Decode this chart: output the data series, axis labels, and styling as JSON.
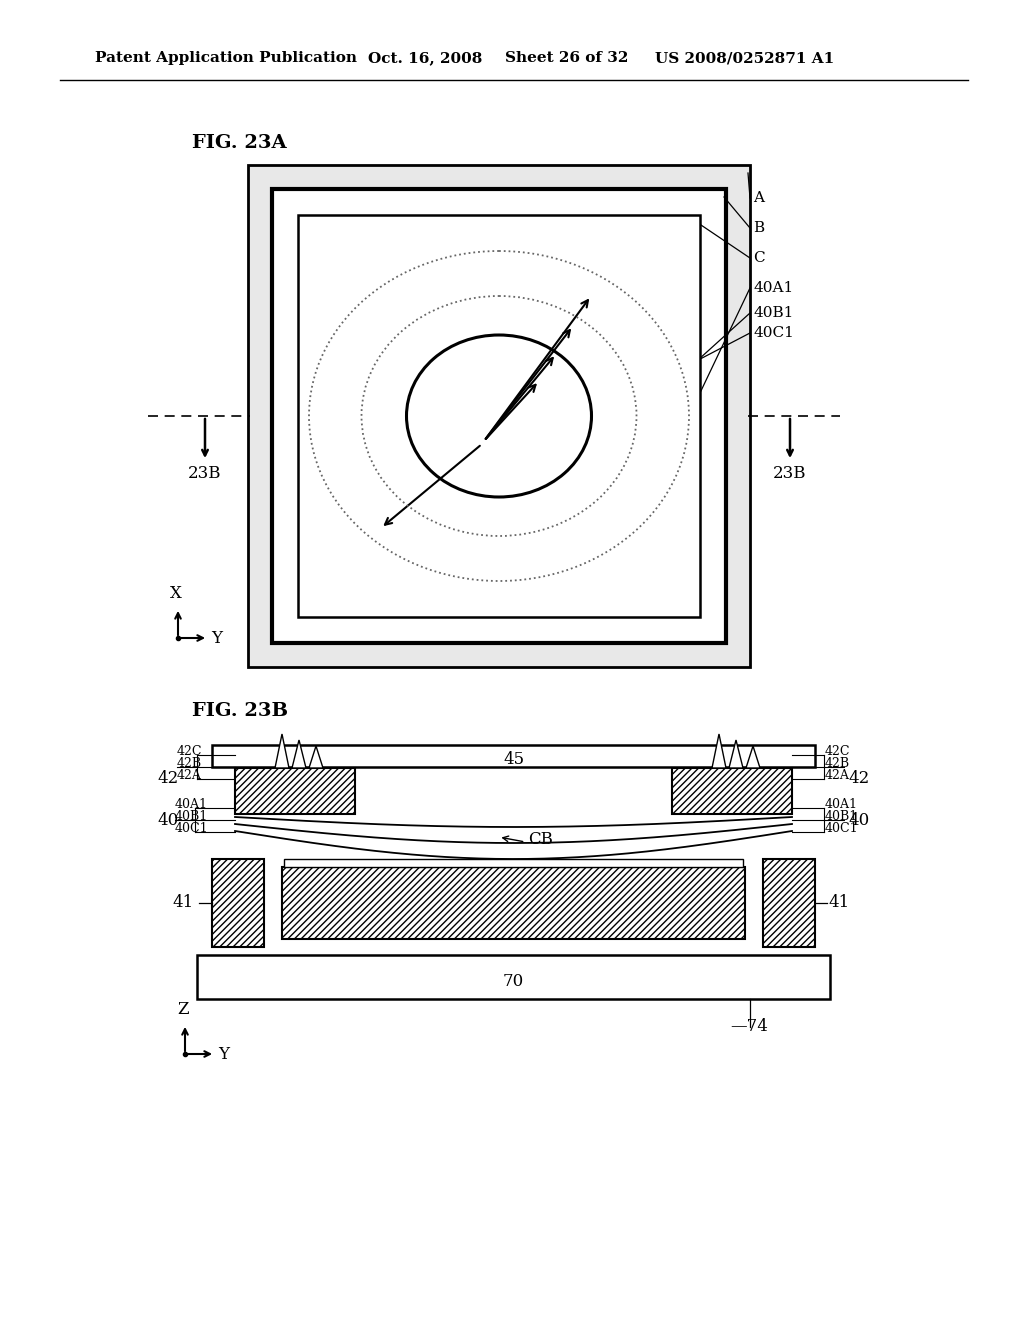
{
  "bg_color": "#ffffff",
  "lc": "#000000",
  "header_left": "Patent Application Publication",
  "header_mid1": "Oct. 16, 2008",
  "header_mid2": "Sheet 26 of 32",
  "header_right": "US 2008/0252871 A1",
  "fig23a_label": "FIG. 23A",
  "fig23b_label": "FIG. 23B",
  "label_A": "A",
  "label_B": "B",
  "label_C": "C",
  "label_40A1": "40A1",
  "label_40B1": "40B1",
  "label_40C1": "40C1",
  "label_23B": "23B",
  "label_X": "X",
  "label_Y": "Y",
  "label_Z": "Z",
  "label_45": "45",
  "label_42": "42",
  "label_42C": "42C",
  "label_42B": "42B",
  "label_42A": "42A",
  "label_40": "40",
  "label_CB": "CB",
  "label_41": "41",
  "label_70": "70",
  "label_74": "74"
}
